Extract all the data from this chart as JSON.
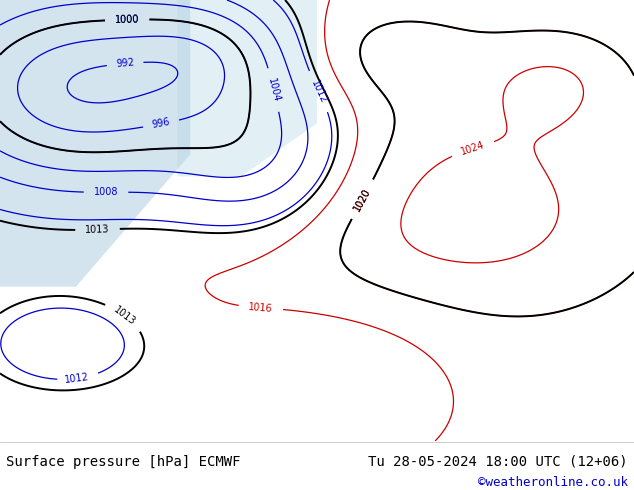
{
  "title_left": "Surface pressure [hPa] ECMWF",
  "title_right": "Tu 28-05-2024 18:00 UTC (12+06)",
  "credit": "©weatheronline.co.uk",
  "bg_color": "#c8e6a0",
  "fig_width": 6.34,
  "fig_height": 4.9,
  "dpi": 100,
  "footer_bg": "#ffffff",
  "color_black": "#000000",
  "color_blue": "#0000cc",
  "color_red": "#cc0000",
  "font_size_footer": 10,
  "font_size_credit": 9
}
